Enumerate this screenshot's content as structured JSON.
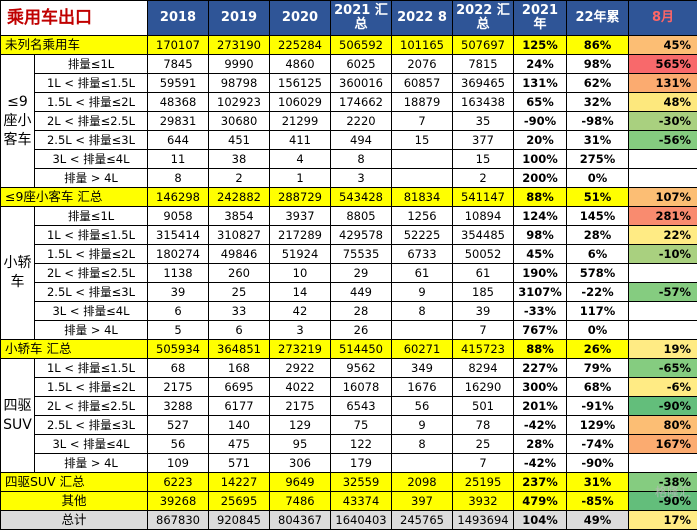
{
  "header": {
    "title": "乘用车出口",
    "col_2018": "2018",
    "col_2019": "2019",
    "col_2020": "2020",
    "col_2021": "2021 汇总",
    "col_2022_8": "2022 8",
    "col_2022_sum": "2022 汇总",
    "col_2021_yr": "2021年",
    "col_22_cum": "22年累",
    "col_aug": "8月"
  },
  "rows": [
    {
      "type": "first",
      "label": "未列名乘用车",
      "v": [
        "170107",
        "273190",
        "225284",
        "506592",
        "101165",
        "507697"
      ],
      "p1": "125%",
      "p2": "86%",
      "m": "45%",
      "mc": "co2"
    },
    {
      "type": "data",
      "cat": "≤9座小客车",
      "label": "排量≤1L",
      "v": [
        "7845",
        "9990",
        "4860",
        "6025",
        "2076",
        "7815"
      ],
      "p1": "24%",
      "p2": "98%",
      "m": "565%",
      "mc": "cr"
    },
    {
      "type": "data",
      "label": "1L < 排量≤1.5L",
      "v": [
        "59591",
        "98798",
        "156125",
        "360016",
        "60857",
        "369465"
      ],
      "p1": "131%",
      "p2": "62%",
      "m": "131%",
      "mc": "co"
    },
    {
      "type": "data",
      "label": "1.5L < 排量≤2L",
      "v": [
        "48368",
        "102923",
        "106029",
        "174662",
        "18879",
        "163438"
      ],
      "p1": "65%",
      "p2": "32%",
      "m": "48%",
      "mc": "cy"
    },
    {
      "type": "data",
      "label": "2L < 排量≤2.5L",
      "v": [
        "29831",
        "30680",
        "21299",
        "2220",
        "7",
        "35"
      ],
      "p1": "-90%",
      "p2": "-98%",
      "m": "-30%",
      "mc": "cg3"
    },
    {
      "type": "data",
      "label": "2.5L < 排量≤3L",
      "v": [
        "644",
        "451",
        "411",
        "494",
        "15",
        "377"
      ],
      "p1": "20%",
      "p2": "31%",
      "m": "-56%",
      "mc": "cg2"
    },
    {
      "type": "data",
      "label": "3L < 排量≤4L",
      "v": [
        "11",
        "38",
        "4",
        "8",
        "",
        "15"
      ],
      "p1": "100%",
      "p2": "275%",
      "m": "",
      "mc": ""
    },
    {
      "type": "data",
      "label": "排量 > 4L",
      "v": [
        "8",
        "2",
        "1",
        "3",
        "",
        "2"
      ],
      "p1": "200%",
      "p2": "0%",
      "m": "",
      "mc": ""
    },
    {
      "type": "sum",
      "label": "≤9座小客车 汇总",
      "v": [
        "146298",
        "242882",
        "288729",
        "543428",
        "81834",
        "541147"
      ],
      "p1": "88%",
      "p2": "51%",
      "m": "107%",
      "mc": "co2"
    },
    {
      "type": "data",
      "cat": "小轿车",
      "label": "排量≤1L",
      "v": [
        "9058",
        "3854",
        "3937",
        "8805",
        "1256",
        "10894"
      ],
      "p1": "124%",
      "p2": "145%",
      "m": "281%",
      "mc": "cr2"
    },
    {
      "type": "data",
      "label": "1L < 排量≤1.5L",
      "v": [
        "315414",
        "310827",
        "217289",
        "429578",
        "52225",
        "354485"
      ],
      "p1": "98%",
      "p2": "28%",
      "m": "22%",
      "mc": "cy2"
    },
    {
      "type": "data",
      "label": "1.5L < 排量≤2L",
      "v": [
        "180274",
        "49846",
        "51924",
        "75535",
        "6733",
        "50052"
      ],
      "p1": "45%",
      "p2": "6%",
      "m": "-10%",
      "mc": "cg3"
    },
    {
      "type": "data",
      "label": "2L < 排量≤2.5L",
      "v": [
        "1138",
        "260",
        "10",
        "29",
        "61",
        "61"
      ],
      "p1": "190%",
      "p2": "578%",
      "m": "",
      "mc": ""
    },
    {
      "type": "data",
      "label": "2.5L < 排量≤3L",
      "v": [
        "39",
        "25",
        "14",
        "449",
        "9",
        "185"
      ],
      "p1": "3107%",
      "p2": "-22%",
      "m": "-57%",
      "mc": "cg2"
    },
    {
      "type": "data",
      "label": "3L < 排量≤4L",
      "v": [
        "6",
        "33",
        "42",
        "28",
        "8",
        "39"
      ],
      "p1": "-33%",
      "p2": "117%",
      "m": "",
      "mc": ""
    },
    {
      "type": "data",
      "label": "排量 > 4L",
      "v": [
        "5",
        "6",
        "3",
        "26",
        "",
        "7"
      ],
      "p1": "767%",
      "p2": "0%",
      "m": "",
      "mc": ""
    },
    {
      "type": "sum",
      "label": "小轿车 汇总",
      "v": [
        "505934",
        "364851",
        "273219",
        "514450",
        "60271",
        "415723"
      ],
      "p1": "88%",
      "p2": "26%",
      "m": "19%",
      "mc": "cy2"
    },
    {
      "type": "data",
      "cat": "四驱SUV",
      "label": "1L < 排量≤1.5L",
      "v": [
        "68",
        "168",
        "2922",
        "9562",
        "349",
        "8294"
      ],
      "p1": "227%",
      "p2": "79%",
      "m": "-65%",
      "mc": "cg2"
    },
    {
      "type": "data",
      "label": "1.5L < 排量≤2L",
      "v": [
        "2175",
        "6695",
        "4022",
        "16078",
        "1676",
        "16290"
      ],
      "p1": "300%",
      "p2": "68%",
      "m": "-6%",
      "mc": "cy2"
    },
    {
      "type": "data",
      "label": "2L < 排量≤2.5L",
      "v": [
        "3288",
        "6177",
        "2175",
        "6543",
        "56",
        "501"
      ],
      "p1": "201%",
      "p2": "-91%",
      "m": "-90%",
      "mc": "cg"
    },
    {
      "type": "data",
      "label": "2.5L < 排量≤3L",
      "v": [
        "527",
        "140",
        "129",
        "75",
        "9",
        "78"
      ],
      "p1": "-42%",
      "p2": "129%",
      "m": "80%",
      "mc": "co2"
    },
    {
      "type": "data",
      "label": "3L < 排量≤4L",
      "v": [
        "56",
        "475",
        "95",
        "122",
        "8",
        "25"
      ],
      "p1": "28%",
      "p2": "-74%",
      "m": "167%",
      "mc": "co"
    },
    {
      "type": "data",
      "label": "排量 > 4L",
      "v": [
        "109",
        "571",
        "306",
        "179",
        "",
        "7"
      ],
      "p1": "-42%",
      "p2": "-90%",
      "m": "",
      "mc": ""
    },
    {
      "type": "sum",
      "label": "四驱SUV 汇总",
      "v": [
        "6223",
        "14227",
        "9649",
        "32559",
        "2098",
        "25195"
      ],
      "p1": "237%",
      "p2": "31%",
      "m": "-38%",
      "mc": "cg2"
    },
    {
      "type": "other",
      "label": "其他",
      "v": [
        "39268",
        "25695",
        "7486",
        "43374",
        "397",
        "3932"
      ],
      "p1": "479%",
      "p2": "-85%",
      "m": "-90%",
      "mc": "cg"
    },
    {
      "type": "total",
      "label": "总计",
      "v": [
        "867830",
        "920845",
        "804367",
        "1640403",
        "245765",
        "1493694"
      ],
      "p1": "104%",
      "p2": "49%",
      "m": "17%",
      "mc": "cy2"
    }
  ],
  "watermark": "格隆汇"
}
